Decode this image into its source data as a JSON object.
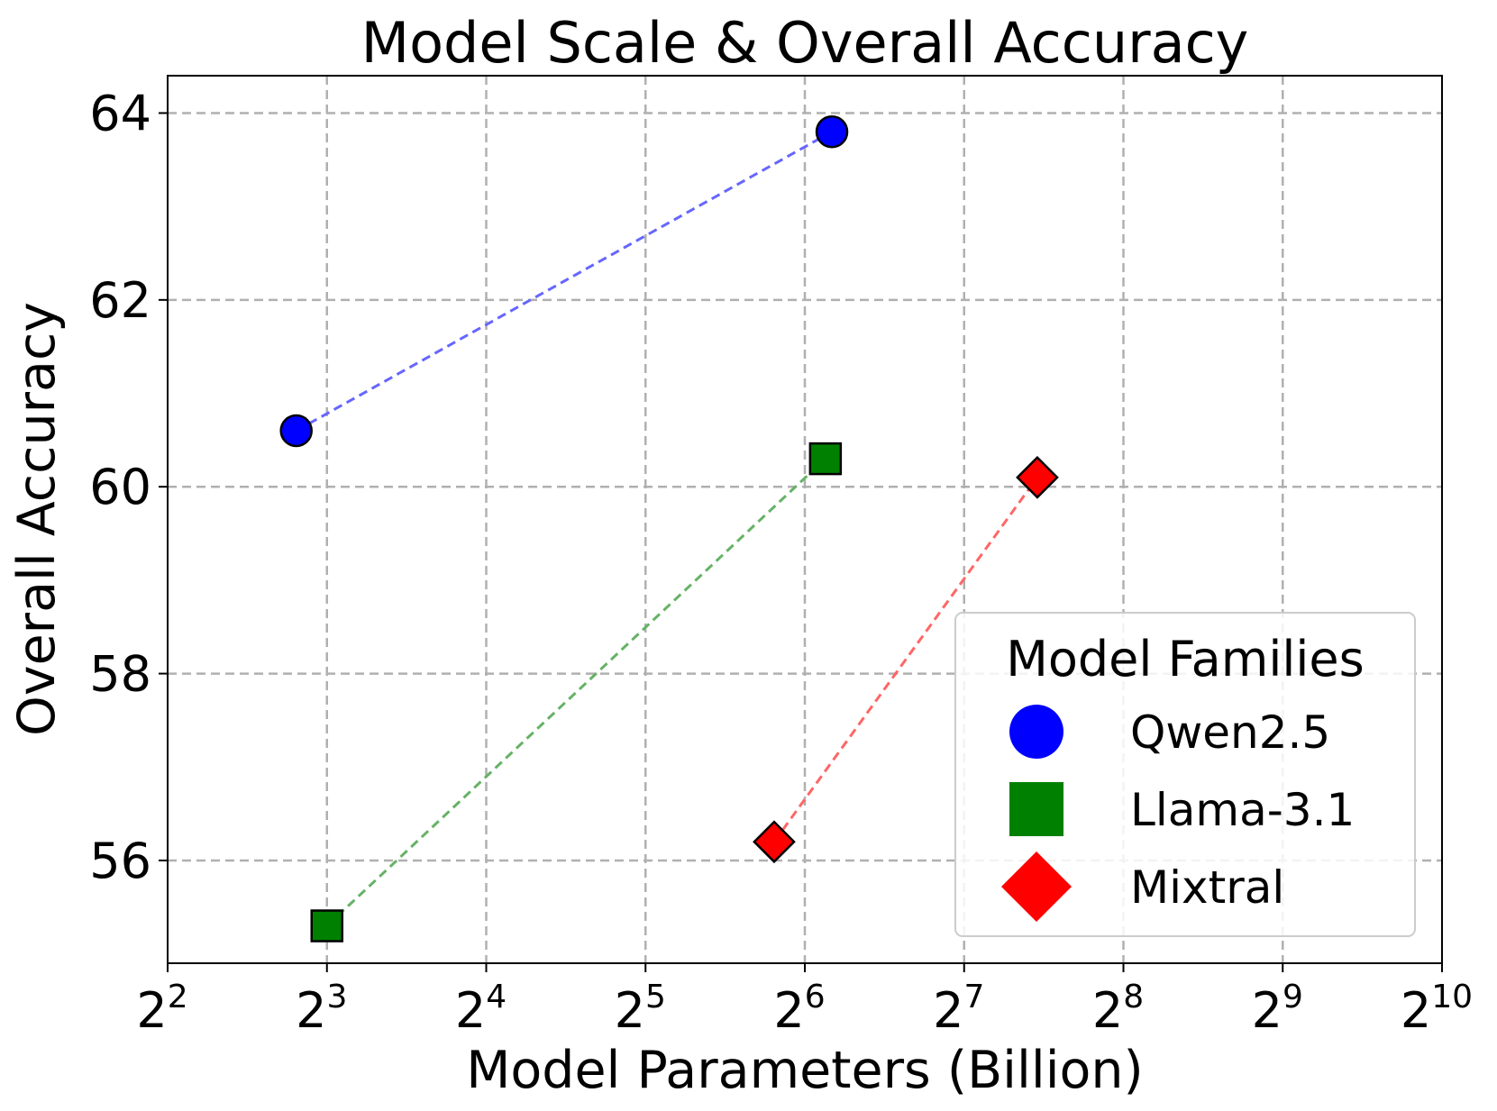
{
  "chart_data": {
    "type": "scatter",
    "title": "Model Scale & Overall Accuracy",
    "xlabel": "Model Parameters (Billion)",
    "ylabel": "Overall Accuracy",
    "xscale": "log2",
    "xlim": [
      4,
      1024
    ],
    "ylim": [
      54.9,
      64.4
    ],
    "grid": true,
    "x_ticks": [
      {
        "base": "2",
        "exp": "2"
      },
      {
        "base": "2",
        "exp": "3"
      },
      {
        "base": "2",
        "exp": "4"
      },
      {
        "base": "2",
        "exp": "5"
      },
      {
        "base": "2",
        "exp": "6"
      },
      {
        "base": "2",
        "exp": "7"
      },
      {
        "base": "2",
        "exp": "8"
      },
      {
        "base": "2",
        "exp": "9"
      },
      {
        "base": "2",
        "exp": "10"
      }
    ],
    "y_ticks": [
      "56",
      "58",
      "60",
      "62",
      "64"
    ],
    "legend": {
      "title": "Model Families",
      "position": "lower-right"
    },
    "series": [
      {
        "name": "Qwen2.5",
        "color": "#0000ff",
        "marker": "circle",
        "line_color": "#6666ff",
        "x": [
          7,
          72
        ],
        "y": [
          60.6,
          63.8
        ]
      },
      {
        "name": "Llama-3.1",
        "color": "#008000",
        "marker": "square",
        "line_color": "#66b266",
        "x": [
          8,
          70
        ],
        "y": [
          55.3,
          60.3
        ]
      },
      {
        "name": "Mixtral",
        "color": "#ff0000",
        "marker": "diamond",
        "line_color": "#ff6666",
        "x": [
          56,
          176
        ],
        "y": [
          56.2,
          60.1
        ]
      }
    ]
  }
}
